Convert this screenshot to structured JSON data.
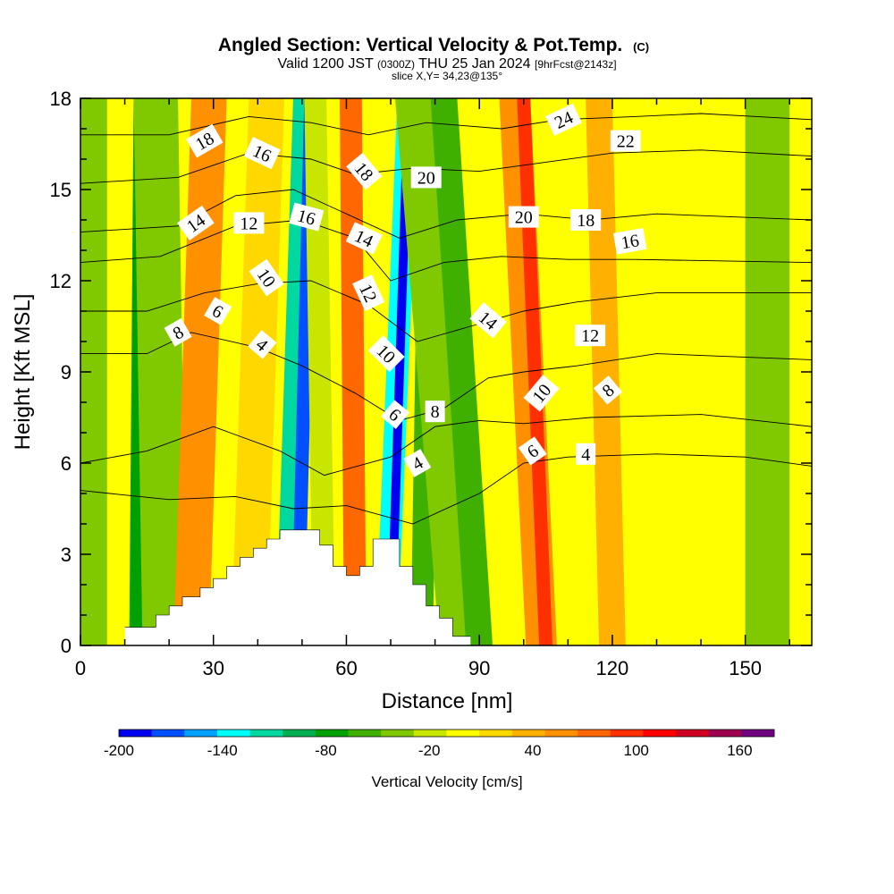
{
  "header": {
    "title": "Angled Section: Vertical Velocity & Pot.Temp.",
    "title_tag": "(C)",
    "valid_prefix": "Valid 1200 JST",
    "valid_utc": "(0300Z)",
    "valid_date": "THU 25 Jan 2024",
    "forecast": "[9hrFcst@2143z]",
    "slice": "slice X,Y= 34,23@135°"
  },
  "chart_data": {
    "type": "heatmap",
    "xlabel": "Distance [nm]",
    "ylabel": "Height [Kft MSL]",
    "xlim": [
      0,
      165
    ],
    "ylim": [
      0,
      18
    ],
    "x_ticks": [
      0,
      30,
      60,
      90,
      120,
      150
    ],
    "y_ticks": [
      0,
      3,
      6,
      9,
      12,
      15,
      18
    ],
    "colorbar": {
      "label": "Vertical Velocity [cm/s]",
      "min": -200,
      "max": 180,
      "step": 20,
      "tick_labels": [
        -200,
        -140,
        -80,
        -20,
        40,
        100,
        160
      ],
      "colors": [
        "#0000f0",
        "#0050ff",
        "#00a0ff",
        "#00ffff",
        "#00d8a0",
        "#00b050",
        "#00a000",
        "#40b000",
        "#80c800",
        "#c8e600",
        "#ffff00",
        "#ffd800",
        "#ffb000",
        "#ff9000",
        "#ff6800",
        "#ff3000",
        "#ff0000",
        "#d00020",
        "#a00050",
        "#700080"
      ]
    },
    "bands": [
      {
        "x": 2,
        "w": 8,
        "lean": 0,
        "v": -40
      },
      {
        "x": 14,
        "w": 6,
        "lean": 1,
        "v": -80
      },
      {
        "x": 19,
        "w": 10,
        "lean": -2,
        "v": -30
      },
      {
        "x": 25,
        "w": 8,
        "lean": 4,
        "v": 70
      },
      {
        "x": 38,
        "w": 8,
        "lean": 4,
        "v": 20
      },
      {
        "x": 47,
        "w": 6,
        "lean": 4,
        "v": -120
      },
      {
        "x": 49,
        "w": 3,
        "lean": 3,
        "v": -180
      },
      {
        "x": 55,
        "w": 5,
        "lean": -2,
        "v": -20
      },
      {
        "x": 62,
        "w": 5,
        "lean": -1,
        "v": 80
      },
      {
        "x": 69,
        "w": 5,
        "lean": 5,
        "v": -140
      },
      {
        "x": 70,
        "w": 2,
        "lean": 4,
        "v": -200
      },
      {
        "x": 77,
        "w": 5,
        "lean": 2,
        "v": -60
      },
      {
        "x": 86,
        "w": 10,
        "lean": -10,
        "v": -30
      },
      {
        "x": 90,
        "w": 6,
        "lean": -8,
        "v": -60
      },
      {
        "x": 104,
        "w": 7,
        "lean": -6,
        "v": 60
      },
      {
        "x": 105,
        "w": 3,
        "lean": -5,
        "v": 100
      },
      {
        "x": 120,
        "w": 6,
        "lean": -3,
        "v": 50
      },
      {
        "x": 155,
        "w": 10,
        "lean": 0,
        "v": -30
      }
    ],
    "terrain": [
      [
        10,
        0.6
      ],
      [
        17,
        0.6
      ],
      [
        17,
        1.0
      ],
      [
        20,
        1.0
      ],
      [
        20,
        1.3
      ],
      [
        23,
        1.3
      ],
      [
        23,
        1.6
      ],
      [
        27,
        1.6
      ],
      [
        27,
        1.9
      ],
      [
        30,
        1.9
      ],
      [
        30,
        2.2
      ],
      [
        33,
        2.2
      ],
      [
        33,
        2.6
      ],
      [
        36,
        2.6
      ],
      [
        36,
        2.9
      ],
      [
        39,
        2.9
      ],
      [
        39,
        3.2
      ],
      [
        42,
        3.2
      ],
      [
        42,
        3.5
      ],
      [
        45,
        3.5
      ],
      [
        45,
        3.8
      ],
      [
        54,
        3.8
      ],
      [
        54,
        3.3
      ],
      [
        57,
        3.3
      ],
      [
        57,
        2.6
      ],
      [
        60,
        2.6
      ],
      [
        60,
        2.3
      ],
      [
        63,
        2.3
      ],
      [
        63,
        2.6
      ],
      [
        66,
        2.6
      ],
      [
        66,
        3.5
      ],
      [
        72,
        3.5
      ],
      [
        72,
        2.6
      ],
      [
        75,
        2.6
      ],
      [
        75,
        2.0
      ],
      [
        78,
        2.0
      ],
      [
        78,
        1.3
      ],
      [
        81,
        1.3
      ],
      [
        81,
        0.9
      ],
      [
        84,
        0.9
      ],
      [
        84,
        0.3
      ],
      [
        88,
        0.3
      ]
    ],
    "isentropes": [
      {
        "lbl": "4",
        "pts": [
          [
            0,
            5.1
          ],
          [
            20,
            4.8
          ],
          [
            35,
            4.9
          ],
          [
            48,
            4.5
          ],
          [
            60,
            4.6
          ],
          [
            75,
            4.0
          ],
          [
            90,
            5.0
          ],
          [
            100,
            6.0
          ],
          [
            110,
            6.2
          ],
          [
            130,
            6.3
          ],
          [
            150,
            6.2
          ],
          [
            165,
            5.9
          ]
        ]
      },
      {
        "lbl": "6",
        "pts": [
          [
            0,
            6.0
          ],
          [
            15,
            6.4
          ],
          [
            30,
            7.2
          ],
          [
            45,
            6.4
          ],
          [
            55,
            5.6
          ],
          [
            70,
            6.2
          ],
          [
            80,
            7.2
          ],
          [
            90,
            7.4
          ],
          [
            100,
            7.3
          ],
          [
            115,
            7.5
          ],
          [
            140,
            7.6
          ],
          [
            165,
            7.2
          ]
        ]
      },
      {
        "lbl": "8",
        "pts": [
          [
            0,
            9.6
          ],
          [
            15,
            9.6
          ],
          [
            25,
            10.3
          ],
          [
            40,
            9.8
          ],
          [
            50,
            9.2
          ],
          [
            62,
            8.3
          ],
          [
            72,
            7.4
          ],
          [
            82,
            7.8
          ],
          [
            92,
            8.8
          ],
          [
            100,
            9.0
          ],
          [
            112,
            9.2
          ],
          [
            130,
            9.6
          ],
          [
            165,
            9.4
          ]
        ]
      },
      {
        "lbl": "10",
        "pts": [
          [
            0,
            11.0
          ],
          [
            15,
            11.0
          ],
          [
            28,
            11.6
          ],
          [
            40,
            11.9
          ],
          [
            52,
            12.0
          ],
          [
            65,
            11.2
          ],
          [
            76,
            10.0
          ],
          [
            88,
            10.5
          ],
          [
            100,
            11.0
          ],
          [
            112,
            11.3
          ],
          [
            130,
            11.6
          ],
          [
            165,
            11.6
          ]
        ]
      },
      {
        "lbl": "12",
        "pts": [
          [
            0,
            12.6
          ],
          [
            18,
            12.8
          ],
          [
            35,
            13.8
          ],
          [
            50,
            14.0
          ],
          [
            62,
            13.4
          ],
          [
            70,
            12.0
          ],
          [
            82,
            12.6
          ],
          [
            95,
            12.8
          ],
          [
            110,
            12.7
          ],
          [
            125,
            12.7
          ],
          [
            165,
            12.6
          ]
        ]
      },
      {
        "lbl": "14",
        "pts": [
          [
            0,
            13.6
          ],
          [
            22,
            13.8
          ],
          [
            35,
            14.8
          ],
          [
            48,
            15.0
          ],
          [
            60,
            14.2
          ],
          [
            72,
            13.4
          ],
          [
            85,
            14.0
          ],
          [
            100,
            14.2
          ],
          [
            115,
            14.0
          ],
          [
            130,
            14.2
          ],
          [
            165,
            14.0
          ]
        ]
      },
      {
        "lbl": "16",
        "pts": [
          [
            0,
            15.2
          ],
          [
            22,
            15.4
          ],
          [
            38,
            16.2
          ],
          [
            52,
            16.0
          ],
          [
            62,
            15.5
          ],
          [
            75,
            15.7
          ],
          [
            90,
            15.6
          ],
          [
            105,
            15.9
          ],
          [
            120,
            16.2
          ],
          [
            140,
            16.3
          ],
          [
            165,
            16.1
          ]
        ]
      },
      {
        "lbl": "18",
        "pts": [
          [
            0,
            16.8
          ],
          [
            20,
            16.8
          ],
          [
            38,
            17.4
          ],
          [
            52,
            17.2
          ],
          [
            65,
            16.8
          ],
          [
            78,
            17.2
          ],
          [
            95,
            17.0
          ],
          [
            108,
            17.3
          ],
          [
            125,
            17.4
          ],
          [
            140,
            17.5
          ],
          [
            165,
            17.3
          ]
        ]
      }
    ],
    "contour_labels": [
      {
        "t": "18",
        "x": 28,
        "y": 16.6,
        "a": -30
      },
      {
        "t": "16",
        "x": 41,
        "y": 16.2,
        "a": 25
      },
      {
        "t": "18",
        "x": 64,
        "y": 15.6,
        "a": 50
      },
      {
        "t": "20",
        "x": 78,
        "y": 15.4,
        "a": 0
      },
      {
        "t": "24",
        "x": 109,
        "y": 17.3,
        "a": -25
      },
      {
        "t": "22",
        "x": 123,
        "y": 16.6,
        "a": 0
      },
      {
        "t": "14",
        "x": 26,
        "y": 13.9,
        "a": -35
      },
      {
        "t": "12",
        "x": 38,
        "y": 13.9,
        "a": 0
      },
      {
        "t": "16",
        "x": 51,
        "y": 14.1,
        "a": 15
      },
      {
        "t": "14",
        "x": 64,
        "y": 13.4,
        "a": 25
      },
      {
        "t": "20",
        "x": 100,
        "y": 14.1,
        "a": 0
      },
      {
        "t": "18",
        "x": 114,
        "y": 14.0,
        "a": 0
      },
      {
        "t": "16",
        "x": 124,
        "y": 13.3,
        "a": -10
      },
      {
        "t": "10",
        "x": 42,
        "y": 12.1,
        "a": 55
      },
      {
        "t": "12",
        "x": 65,
        "y": 11.6,
        "a": 65
      },
      {
        "t": "8",
        "x": 22,
        "y": 10.3,
        "a": -30
      },
      {
        "t": "6",
        "x": 31,
        "y": 11.0,
        "a": 30
      },
      {
        "t": "14",
        "x": 92,
        "y": 10.7,
        "a": 40
      },
      {
        "t": "12",
        "x": 115,
        "y": 10.2,
        "a": 0
      },
      {
        "t": "4",
        "x": 41,
        "y": 9.9,
        "a": 40
      },
      {
        "t": "10",
        "x": 69,
        "y": 9.6,
        "a": 45
      },
      {
        "t": "10",
        "x": 104,
        "y": 8.3,
        "a": -50
      },
      {
        "t": "8",
        "x": 119,
        "y": 8.4,
        "a": -40
      },
      {
        "t": "6",
        "x": 71,
        "y": 7.6,
        "a": 40
      },
      {
        "t": "8",
        "x": 80,
        "y": 7.7,
        "a": 0
      },
      {
        "t": "6",
        "x": 102,
        "y": 6.4,
        "a": -35
      },
      {
        "t": "4",
        "x": 114,
        "y": 6.3,
        "a": 0
      },
      {
        "t": "4",
        "x": 76,
        "y": 6.0,
        "a": -30
      }
    ]
  }
}
